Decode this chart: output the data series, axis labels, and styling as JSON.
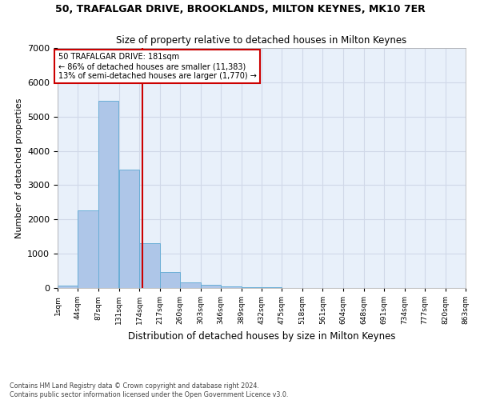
{
  "title": "50, TRAFALGAR DRIVE, BROOKLANDS, MILTON KEYNES, MK10 7ER",
  "subtitle": "Size of property relative to detached houses in Milton Keynes",
  "xlabel": "Distribution of detached houses by size in Milton Keynes",
  "ylabel": "Number of detached properties",
  "footnote": "Contains HM Land Registry data © Crown copyright and database right 2024.\nContains public sector information licensed under the Open Government Licence v3.0.",
  "bar_color": "#aec6e8",
  "bar_edge_color": "#6aaed6",
  "grid_color": "#d0d8e8",
  "background_color": "#e8f0fa",
  "subject_line_color": "#cc0000",
  "annotation_box_color": "#cc0000",
  "annotation_text": "50 TRAFALGAR DRIVE: 181sqm\n← 86% of detached houses are smaller (11,383)\n13% of semi-detached houses are larger (1,770) →",
  "subject_value": 181,
  "bins": [
    1,
    44,
    87,
    131,
    174,
    217,
    260,
    303,
    346,
    389,
    432,
    475,
    518,
    561,
    604,
    648,
    691,
    734,
    777,
    820,
    863
  ],
  "counts": [
    75,
    2270,
    5470,
    3450,
    1310,
    470,
    155,
    90,
    55,
    30,
    15,
    0,
    0,
    0,
    0,
    0,
    0,
    0,
    0,
    0
  ],
  "ylim": [
    0,
    7000
  ],
  "yticks": [
    0,
    1000,
    2000,
    3000,
    4000,
    5000,
    6000,
    7000
  ]
}
